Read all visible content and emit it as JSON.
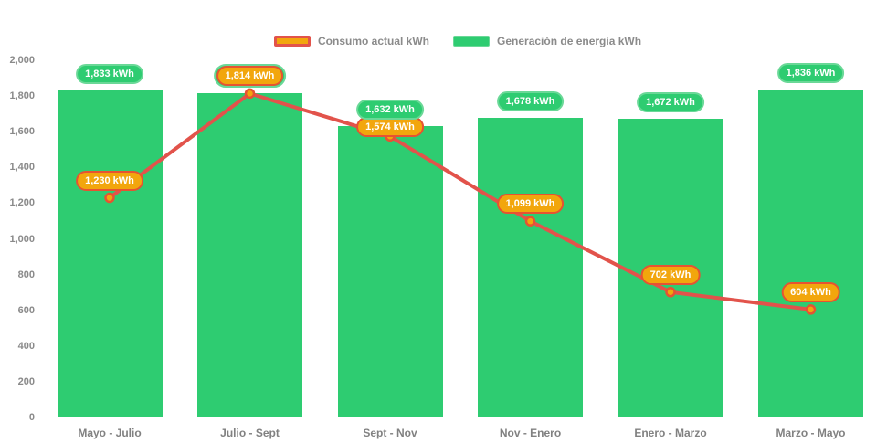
{
  "chart_data": {
    "type": "combo",
    "title": "",
    "categories": [
      "Mayo - Julio",
      "Julio - Sept",
      "Sept - Nov",
      "Nov - Enero",
      "Enero - Marzo",
      "Marzo - Mayo"
    ],
    "series": [
      {
        "name": "Consumo actual kWh",
        "type": "line",
        "values": [
          1230,
          1814,
          1574,
          1099,
          702,
          604
        ],
        "data_labels": [
          "1,230 kWh",
          "1,814 kWh",
          "1,574 kWh",
          "1,099 kWh",
          "702 kWh",
          "604 kWh"
        ],
        "color": "#e2534b",
        "point_fill": "#f2a60d",
        "point_stroke": "#e65332",
        "label_fill": "#f2a60d",
        "label_border": "#e65332"
      },
      {
        "name": "Generación de energía kWh",
        "type": "bar",
        "values": [
          1833,
          1814,
          1632,
          1678,
          1672,
          1836
        ],
        "data_labels": [
          "1,833 kWh",
          "1,814 kWh",
          "1,632 kWh",
          "1,678 kWh",
          "1,672 kWh",
          "1,836 kWh"
        ],
        "color": "#2ecc71",
        "label_fill": "#2ecc71",
        "label_border": "#6ad897"
      }
    ],
    "unit": "kWh",
    "ylim": [
      0,
      2000
    ],
    "ytick_step": 200,
    "ytick_labels": [
      "0",
      "200",
      "400",
      "600",
      "800",
      "1,000",
      "1,200",
      "1,400",
      "1,600",
      "1,800",
      "2,000"
    ],
    "grid": false,
    "legend_position": "top",
    "value_labels_shown": true,
    "axis_text_color": "#8a8a8a",
    "legend_text_color": "#8b8b8b",
    "background": "#ffffff"
  }
}
